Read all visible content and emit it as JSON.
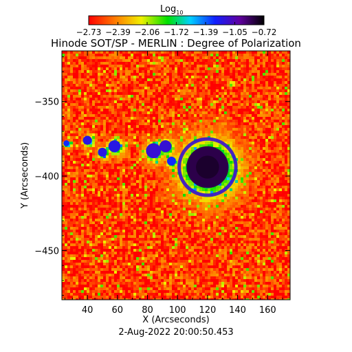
{
  "chart_data": {
    "type": "heatmap",
    "title": "Hinode SOT/SP - MERLIN : Degree of Polarization",
    "xlabel": "X (Arcseconds)",
    "ylabel": "Y (Arcseconds)",
    "timestamp": "2-Aug-2022 20:00:50.453",
    "xlim": [
      23,
      175
    ],
    "ylim": [
      -483,
      -316
    ],
    "xticks": [
      40,
      60,
      80,
      100,
      120,
      140,
      160
    ],
    "yticks": [
      -350,
      -400,
      -450
    ],
    "colorbar": {
      "label_base": "Log",
      "label_sub": "10",
      "range": [
        -2.73,
        -0.72
      ],
      "tick_labels": [
        "-2.73",
        "-2.39",
        "-2.06",
        "-1.72",
        "-1.39",
        "-1.05",
        "-0.72"
      ],
      "colormap": "rainbow (red → yellow → green → cyan → blue → purple → black)"
    },
    "features": [
      {
        "name": "sunspot",
        "x": 120,
        "y": -394,
        "radius": 14,
        "value": -0.85
      },
      {
        "name": "pore",
        "x": 40,
        "y": -376,
        "radius": 3,
        "value": -1.2
      },
      {
        "name": "pore",
        "x": 50,
        "y": -384,
        "radius": 3,
        "value": -1.2
      },
      {
        "name": "pore",
        "x": 58,
        "y": -380,
        "radius": 4,
        "value": -1.2
      },
      {
        "name": "pore",
        "x": 84,
        "y": -383,
        "radius": 5,
        "value": -1.15
      },
      {
        "name": "pore",
        "x": 92,
        "y": -380,
        "radius": 4,
        "value": -1.15
      },
      {
        "name": "pore",
        "x": 96,
        "y": -390,
        "radius": 3,
        "value": -1.3
      },
      {
        "name": "pore",
        "x": 26,
        "y": -378,
        "radius": 2,
        "value": -1.3
      }
    ],
    "background_value": -2.6,
    "grid": false
  }
}
